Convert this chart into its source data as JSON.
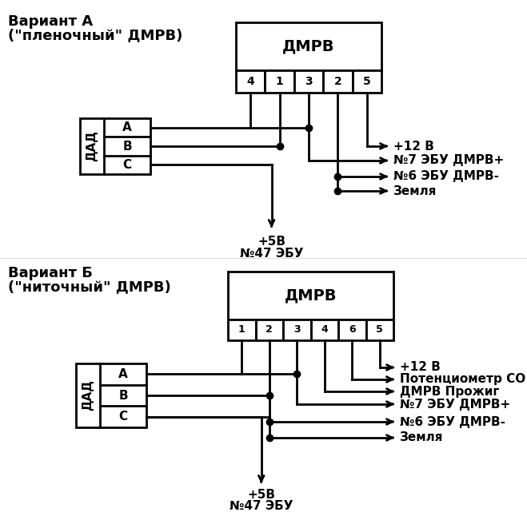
{
  "fig_width": 6.59,
  "fig_height": 6.46,
  "bg_color": "#ffffff",
  "line_color": "#000000",
  "lw": 2.0,
  "dot_size": 6,
  "variantA": {
    "title_line1": "Вариант А",
    "title_line2": "(\"пленочный\" ДМРВ)",
    "dmrv_label": "ДМРВ",
    "dmrv_pins": [
      "4",
      "1",
      "3",
      "2",
      "5"
    ],
    "dad_label": "ДАД",
    "dad_pins": [
      "A",
      "B",
      "C"
    ],
    "right_labels": [
      "+12 В",
      "№7 ЭБУ ДМРВ+",
      "№6 ЭБУ ДМРВ-",
      "Земля"
    ],
    "bottom_label1": "+5В",
    "bottom_label2": "№47 ЭБУ"
  },
  "variantB": {
    "title_line1": "Вариант Б",
    "title_line2": "(\"ниточный\" ДМРВ)",
    "dmrv_label": "ДМРВ",
    "dmrv_pins": [
      "1",
      "2",
      "3",
      "4",
      "6",
      "5"
    ],
    "dad_label": "ДАД",
    "dad_pins": [
      "A",
      "B",
      "C"
    ],
    "right_labels": [
      "+12 В",
      "Потенциометр СО",
      "ДМРВ Прожиг",
      "№7 ЭБУ ДМРВ+",
      "№6 ЭБУ ДМРВ-",
      "Земля"
    ],
    "bottom_label1": "+5В",
    "bottom_label2": "№47 ЭБУ"
  }
}
